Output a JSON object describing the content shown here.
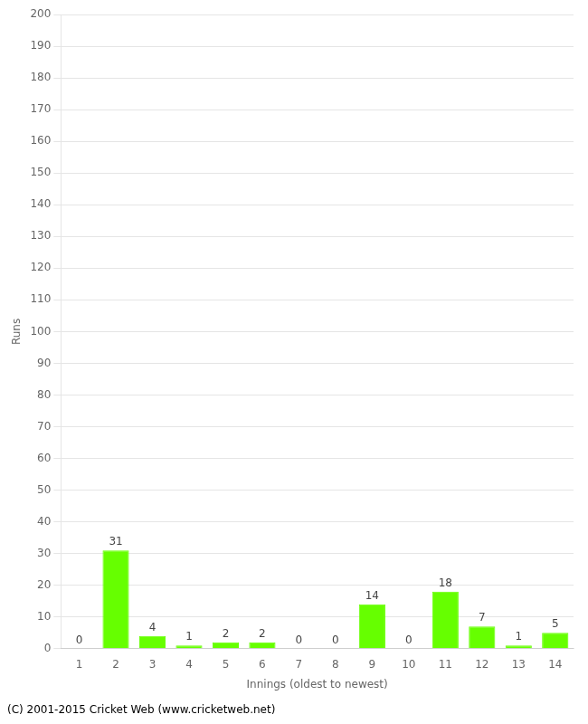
{
  "chart_data": {
    "type": "bar",
    "categories": [
      "1",
      "2",
      "3",
      "4",
      "5",
      "6",
      "7",
      "8",
      "9",
      "10",
      "11",
      "12",
      "13",
      "14"
    ],
    "values": [
      0,
      31,
      4,
      1,
      2,
      2,
      0,
      0,
      14,
      0,
      18,
      7,
      1,
      5
    ],
    "color": "#66ff00",
    "xlabel": "Innings (oldest to newest)",
    "ylabel": "Runs",
    "ylim": [
      0,
      200
    ],
    "yticks": [
      0,
      10,
      20,
      30,
      40,
      50,
      60,
      70,
      80,
      90,
      100,
      110,
      120,
      130,
      140,
      150,
      160,
      170,
      180,
      190,
      200
    ],
    "grid": true,
    "data_labels": true,
    "annotations": [
      "(C) 2001-2015 Cricket Web (www.cricketweb.net)"
    ]
  }
}
